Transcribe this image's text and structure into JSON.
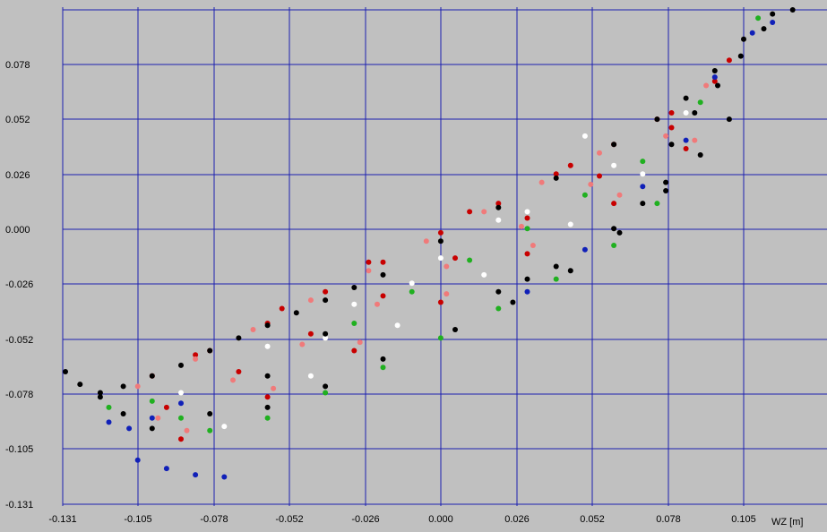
{
  "chart_data": {
    "type": "scatter",
    "xlabel": "WZ [m]",
    "ylabel": "",
    "xlim": [
      -0.131,
      0.124
    ],
    "ylim": [
      -0.131,
      0.105
    ],
    "x_ticks": [
      "-0.131",
      "-0.105",
      "-0.078",
      "-0.052",
      "-0.026",
      "0.000",
      "0.026",
      "0.052",
      "0.078",
      "0.105"
    ],
    "y_ticks": [
      "0.078",
      "0.052",
      "0.026",
      "0.000",
      "-0.026",
      "-0.052",
      "-0.078",
      "-0.105",
      "-0.131"
    ],
    "grid": true,
    "colors": {
      "background": "#c0c0c0",
      "grid": "#1b1fb0",
      "series": [
        "#c80000",
        "#f07a7a",
        "#ffffff",
        "#20b020",
        "#1020b8",
        "#000000"
      ]
    },
    "series": [
      {
        "color": "#c80000",
        "points": [
          [
            -0.1,
            -0.07
          ],
          [
            -0.08,
            -0.058
          ],
          [
            -0.06,
            -0.045
          ],
          [
            -0.04,
            -0.03
          ],
          [
            -0.02,
            -0.016
          ],
          [
            0.0,
            -0.002
          ],
          [
            0.02,
            0.012
          ],
          [
            0.04,
            0.026
          ],
          [
            0.06,
            0.04
          ],
          [
            0.08,
            0.055
          ],
          [
            0.095,
            0.07
          ],
          [
            -0.095,
            -0.085
          ],
          [
            -0.07,
            -0.068
          ],
          [
            -0.045,
            -0.05
          ],
          [
            -0.02,
            -0.032
          ],
          [
            0.005,
            -0.014
          ],
          [
            0.03,
            0.005
          ],
          [
            0.055,
            0.025
          ],
          [
            0.08,
            0.048
          ],
          [
            -0.09,
            -0.1
          ],
          [
            -0.06,
            -0.08
          ],
          [
            -0.03,
            -0.058
          ],
          [
            0.0,
            -0.035
          ],
          [
            0.03,
            -0.012
          ],
          [
            0.06,
            0.012
          ],
          [
            0.085,
            0.038
          ],
          [
            -0.085,
            -0.06
          ],
          [
            -0.055,
            -0.038
          ],
          [
            -0.025,
            -0.016
          ],
          [
            0.01,
            0.008
          ],
          [
            0.045,
            0.03
          ],
          [
            0.075,
            0.052
          ],
          [
            0.1,
            0.08
          ]
        ]
      },
      {
        "color": "#f07a7a",
        "points": [
          [
            -0.105,
            -0.075
          ],
          [
            -0.085,
            -0.062
          ],
          [
            -0.065,
            -0.048
          ],
          [
            -0.045,
            -0.034
          ],
          [
            -0.025,
            -0.02
          ],
          [
            -0.005,
            -0.006
          ],
          [
            0.015,
            0.008
          ],
          [
            0.035,
            0.022
          ],
          [
            0.055,
            0.036
          ],
          [
            0.075,
            0.052
          ],
          [
            0.092,
            0.068
          ],
          [
            -0.098,
            -0.09
          ],
          [
            -0.072,
            -0.072
          ],
          [
            -0.048,
            -0.055
          ],
          [
            -0.022,
            -0.036
          ],
          [
            0.002,
            -0.018
          ],
          [
            0.028,
            0.001
          ],
          [
            0.052,
            0.021
          ],
          [
            0.078,
            0.044
          ],
          [
            -0.088,
            -0.096
          ],
          [
            -0.058,
            -0.076
          ],
          [
            -0.028,
            -0.054
          ],
          [
            0.002,
            -0.031
          ],
          [
            0.032,
            -0.008
          ],
          [
            0.062,
            0.016
          ],
          [
            0.088,
            0.042
          ]
        ]
      },
      {
        "color": "#ffffff",
        "points": [
          [
            -0.09,
            -0.078
          ],
          [
            -0.06,
            -0.056
          ],
          [
            -0.03,
            -0.036
          ],
          [
            0.0,
            -0.014
          ],
          [
            0.03,
            0.008
          ],
          [
            0.06,
            0.03
          ],
          [
            0.085,
            0.055
          ],
          [
            -0.075,
            -0.094
          ],
          [
            -0.045,
            -0.07
          ],
          [
            -0.015,
            -0.046
          ],
          [
            0.015,
            -0.022
          ],
          [
            0.045,
            0.002
          ],
          [
            0.07,
            0.026
          ],
          [
            -0.04,
            -0.052
          ],
          [
            -0.01,
            -0.026
          ],
          [
            0.02,
            0.004
          ],
          [
            0.05,
            0.044
          ]
        ]
      },
      {
        "color": "#20b020",
        "points": [
          [
            -0.1,
            -0.082
          ],
          [
            -0.09,
            -0.09
          ],
          [
            -0.08,
            -0.096
          ],
          [
            -0.06,
            -0.09
          ],
          [
            -0.04,
            -0.078
          ],
          [
            -0.02,
            -0.066
          ],
          [
            0.0,
            -0.052
          ],
          [
            0.02,
            -0.038
          ],
          [
            0.04,
            -0.024
          ],
          [
            0.06,
            -0.008
          ],
          [
            0.075,
            0.012
          ],
          [
            -0.03,
            -0.045
          ],
          [
            -0.01,
            -0.03
          ],
          [
            0.01,
            -0.015
          ],
          [
            0.03,
            0.0
          ],
          [
            0.05,
            0.016
          ],
          [
            0.07,
            0.032
          ],
          [
            0.09,
            0.06
          ],
          [
            0.11,
            0.1
          ],
          [
            -0.115,
            -0.085
          ]
        ]
      },
      {
        "color": "#1020b8",
        "points": [
          [
            -0.105,
            -0.11
          ],
          [
            -0.095,
            -0.114
          ],
          [
            -0.085,
            -0.117
          ],
          [
            -0.075,
            -0.118
          ],
          [
            -0.115,
            -0.092
          ],
          [
            -0.108,
            -0.095
          ],
          [
            -0.1,
            -0.09
          ],
          [
            -0.09,
            -0.083
          ],
          [
            0.03,
            -0.03
          ],
          [
            0.05,
            -0.01
          ],
          [
            0.07,
            0.02
          ],
          [
            0.085,
            0.042
          ],
          [
            0.095,
            0.072
          ],
          [
            0.108,
            0.093
          ],
          [
            0.115,
            0.098
          ]
        ]
      },
      {
        "color": "#000000",
        "points": [
          [
            -0.131,
            -0.068
          ],
          [
            -0.125,
            -0.074
          ],
          [
            -0.118,
            -0.08
          ],
          [
            -0.11,
            -0.088
          ],
          [
            -0.1,
            -0.095
          ],
          [
            -0.118,
            -0.078
          ],
          [
            -0.11,
            -0.075
          ],
          [
            -0.1,
            -0.07
          ],
          [
            -0.09,
            -0.065
          ],
          [
            -0.08,
            -0.058
          ],
          [
            -0.07,
            -0.052
          ],
          [
            -0.06,
            -0.046
          ],
          [
            -0.05,
            -0.04
          ],
          [
            -0.04,
            -0.034
          ],
          [
            -0.03,
            -0.028
          ],
          [
            -0.02,
            -0.022
          ],
          [
            0.0,
            -0.006
          ],
          [
            0.02,
            0.01
          ],
          [
            0.04,
            0.024
          ],
          [
            0.06,
            0.04
          ],
          [
            0.075,
            0.052
          ],
          [
            0.085,
            0.062
          ],
          [
            0.095,
            0.075
          ],
          [
            0.105,
            0.09
          ],
          [
            0.115,
            0.102
          ],
          [
            0.122,
            0.105
          ],
          [
            0.08,
            0.04
          ],
          [
            0.088,
            0.055
          ],
          [
            0.096,
            0.068
          ],
          [
            0.104,
            0.082
          ],
          [
            0.112,
            0.095
          ],
          [
            0.06,
            0.0
          ],
          [
            0.07,
            0.012
          ],
          [
            0.078,
            0.022
          ],
          [
            0.04,
            -0.018
          ],
          [
            0.03,
            -0.024
          ],
          [
            0.02,
            -0.03
          ],
          [
            -0.04,
            -0.05
          ],
          [
            -0.06,
            -0.07
          ],
          [
            -0.08,
            -0.088
          ],
          [
            -0.06,
            -0.085
          ],
          [
            -0.04,
            -0.075
          ],
          [
            -0.02,
            -0.062
          ],
          [
            0.005,
            -0.048
          ],
          [
            0.025,
            -0.035
          ],
          [
            0.045,
            -0.02
          ],
          [
            0.062,
            -0.002
          ],
          [
            0.078,
            0.018
          ],
          [
            0.09,
            0.035
          ],
          [
            0.1,
            0.052
          ]
        ]
      }
    ]
  }
}
